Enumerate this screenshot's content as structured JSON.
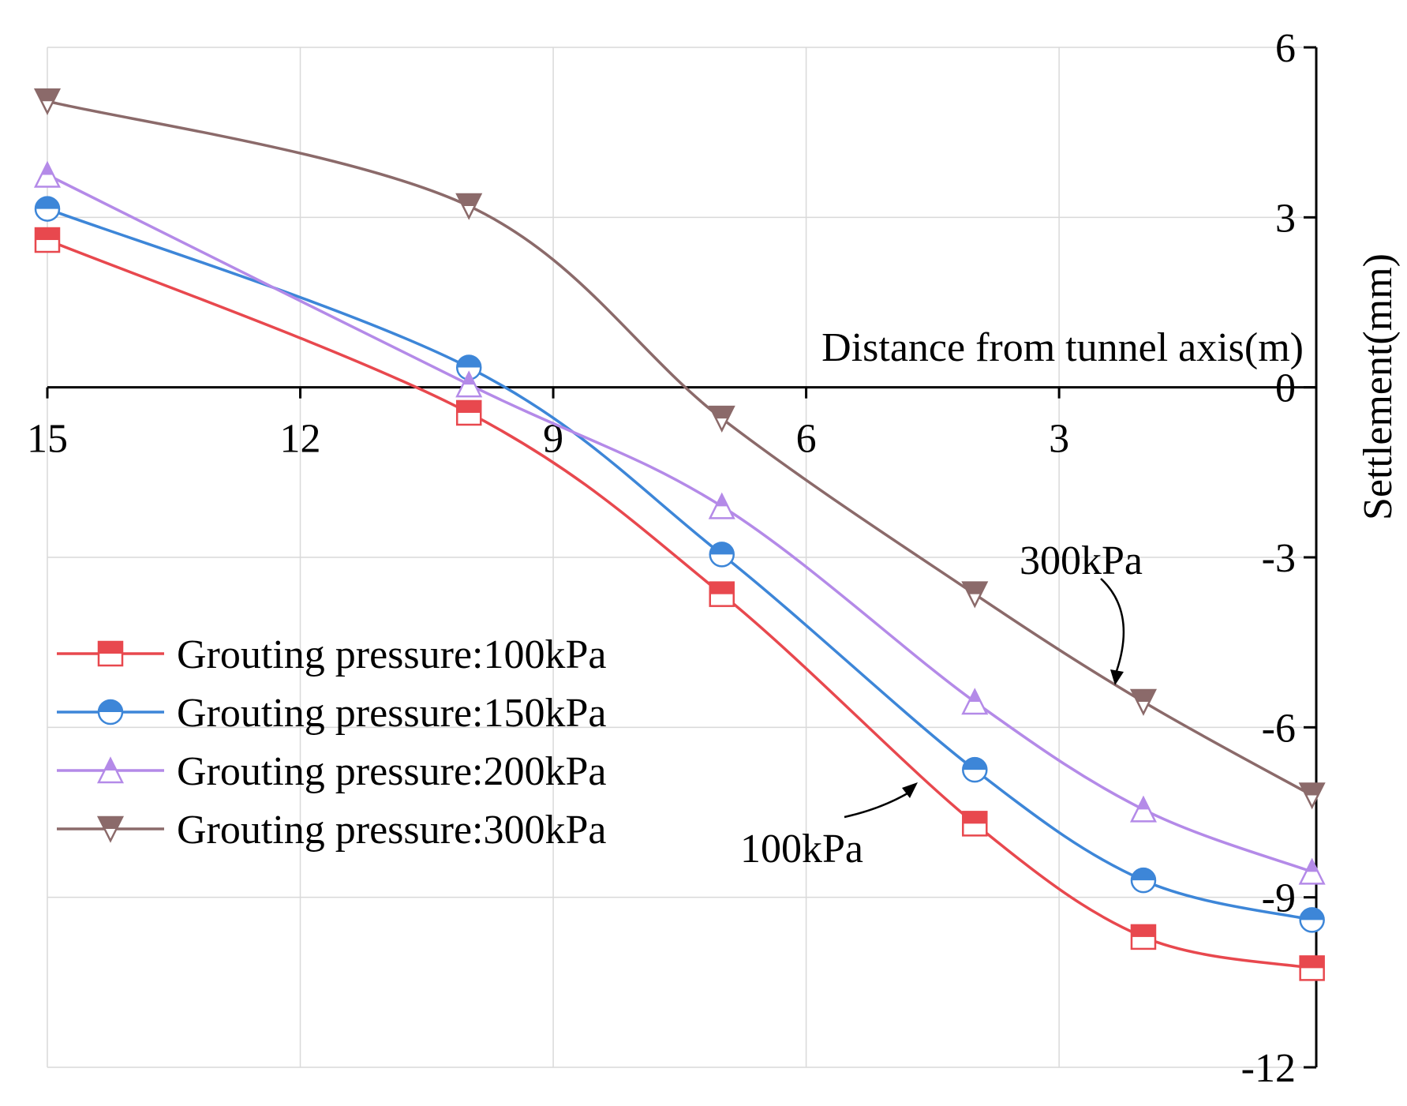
{
  "chart_data": {
    "type": "line",
    "title": "",
    "xlabel": "Distance from tunnel axis(m)",
    "ylabel": "Settlement(mm)",
    "xlim": [
      15,
      -0.05
    ],
    "ylim": [
      -12,
      6
    ],
    "x_inverted": true,
    "xticks": [
      15,
      12,
      9,
      6,
      3
    ],
    "xtick_labels": [
      "15",
      "12",
      "9",
      "6",
      "3"
    ],
    "yticks": [
      6,
      3,
      0,
      -3,
      -6,
      -9,
      -12
    ],
    "ytick_labels": [
      "6",
      "3",
      "0",
      "-3",
      "-6",
      "-9",
      "-12"
    ],
    "grid": true,
    "legend_position": "lower-left",
    "x": [
      15,
      10,
      7,
      4,
      2,
      0
    ],
    "series": [
      {
        "name": "Grouting pressure:100kPa",
        "color": "#e8484e",
        "marker": "square",
        "values": [
          2.6,
          -0.45,
          -3.65,
          -7.7,
          -9.7,
          -10.25
        ]
      },
      {
        "name": "Grouting pressure:150kPa",
        "color": "#3d86d8",
        "marker": "circle",
        "values": [
          3.15,
          0.35,
          -2.95,
          -6.75,
          -8.7,
          -9.4
        ]
      },
      {
        "name": "Grouting pressure:200kPa",
        "color": "#b48ae8",
        "marker": "triangle-up",
        "values": [
          3.75,
          0.05,
          -2.1,
          -5.55,
          -7.45,
          -8.55
        ]
      },
      {
        "name": "Grouting pressure:300kPa",
        "color": "#8b6a6a",
        "marker": "triangle-down",
        "values": [
          5.05,
          3.2,
          -0.55,
          -3.65,
          -5.55,
          -7.2
        ]
      }
    ],
    "annotations": [
      {
        "text": "300kPa",
        "target_series": "Grouting pressure:300kPa"
      },
      {
        "text": "100kPa",
        "target_series": "Grouting pressure:100kPa"
      }
    ]
  }
}
